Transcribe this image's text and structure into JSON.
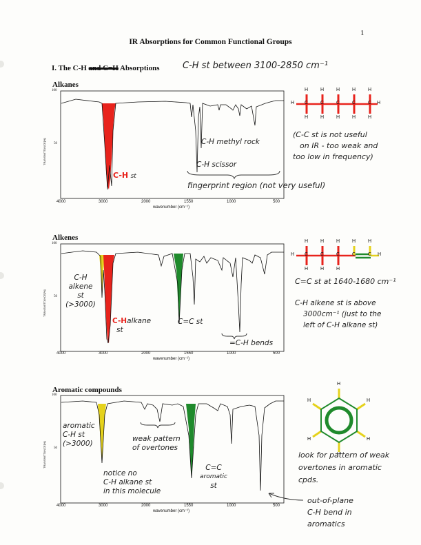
{
  "page_number": "1",
  "title": "IR Absorptions for Common Functional Groups",
  "section": {
    "printed_prefix": "I. The C-H",
    "struck": "and C=H",
    "printed_suffix": "Absorptions",
    "handwritten_note": "C-H st between 3100-2850 cm⁻¹"
  },
  "axis": {
    "ymax": "100",
    "ymid": "50",
    "ylabel": "TRANSMITTANCE[%]",
    "xlabel": "wavenumber (cm⁻¹)",
    "xticks": [
      "4000",
      "3000",
      "2000",
      "1550",
      "1000",
      "500"
    ]
  },
  "panels": [
    {
      "label": "Alkanes",
      "annotations": {
        "ch_st_bold": "C-H",
        "ch_st_rest": "st",
        "methyl_rock": "C-H methyl rock",
        "scissor": "C-H scissor",
        "fingerprint": "fingerprint region (not very useful)",
        "cc_note": [
          "(C-C st is not useful",
          "on IR - too weak and",
          "too low in frequency)"
        ]
      }
    },
    {
      "label": "Alkenes",
      "annotations": {
        "ch_alkene": [
          "C-H",
          "alkene",
          "st",
          "(>3000)"
        ],
        "ch_alkane_bold": "C-H",
        "ch_alkane_rest": [
          "alkane",
          "st"
        ],
        "cc_st": "C=C st",
        "bends": "=C-H bends",
        "cc_range": "C=C st at 1640-1680 cm⁻¹",
        "above_note": [
          "C-H alkene st is above",
          "3000cm⁻¹ (just to the",
          "left of C-H alkane st)"
        ]
      }
    },
    {
      "label": "Aromatic compounds",
      "annotations": {
        "aromatic_ch": [
          "aromatic",
          "C-H st",
          "(>3000)"
        ],
        "overtones": [
          "weak pattern",
          "of overtones"
        ],
        "cc_aromatic": [
          "C=C",
          "aromatic",
          "st"
        ],
        "notice": [
          "notice no",
          "C-H alkane st",
          "in this molecule"
        ],
        "look_for": [
          "look for pattern of weak",
          "overtones in aromatic",
          "cpds."
        ],
        "oop": [
          "out-of-plane",
          "C-H bend in",
          "aromatics"
        ]
      }
    }
  ],
  "molecule_atoms": {
    "H": "H",
    "C": "C"
  },
  "colors": {
    "red": "#e8231c",
    "green": "#1f8a2c",
    "yellow": "#e5d21c",
    "ink": "#111111"
  }
}
